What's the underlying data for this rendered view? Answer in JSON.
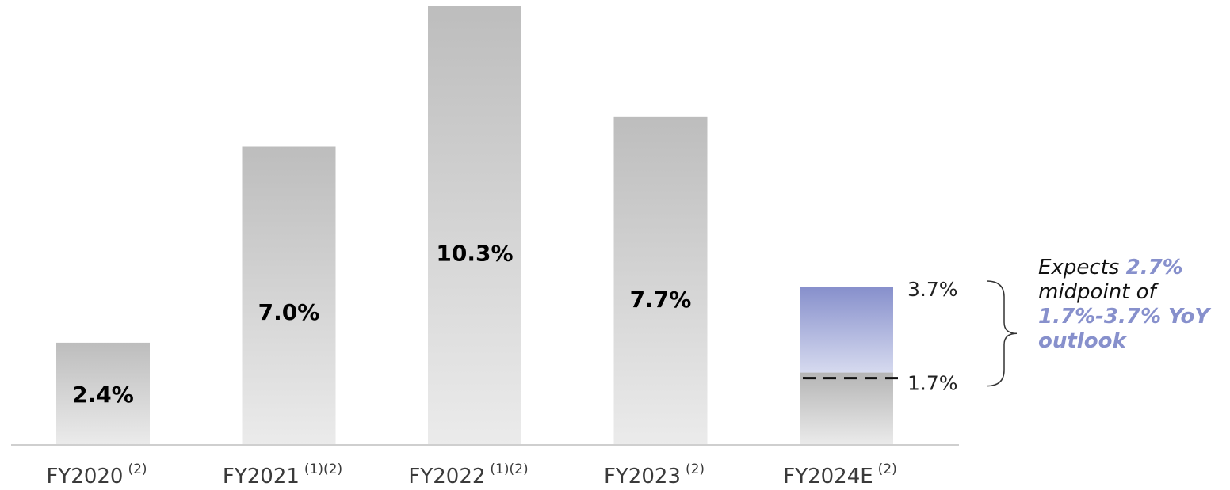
{
  "chart_data": {
    "type": "bar",
    "categories": [
      "FY2020",
      "FY2021",
      "FY2022",
      "FY2023",
      "FY2024E"
    ],
    "category_notes": [
      "(2)",
      "(1)(2)",
      "(1)(2)",
      "(2)",
      "(2)"
    ],
    "values": [
      2.4,
      7.0,
      10.3,
      7.7,
      null
    ],
    "value_labels": [
      "2.4%",
      "7.0%",
      "10.3%",
      "7.7%",
      ""
    ],
    "range": {
      "category": "FY2024E",
      "low": 1.7,
      "high": 3.7,
      "low_label": "1.7%",
      "high_label": "3.7%"
    },
    "ylim": [
      0,
      10.3
    ],
    "grid": false,
    "title": "",
    "xlabel": "",
    "ylabel": ""
  },
  "annotation": {
    "line1_prefix": "Expects ",
    "line1_value": "2.7%",
    "line2": "midpoint of",
    "line3_value": "1.7%-3.7% YoY",
    "line4_value": "outlook"
  },
  "colors": {
    "bar_top": "#bdbdbd",
    "bar_bottom": "#ebebeb",
    "range_top": "#8790cc",
    "range_bottom": "#d6daef",
    "highlight": "#8790cc"
  }
}
